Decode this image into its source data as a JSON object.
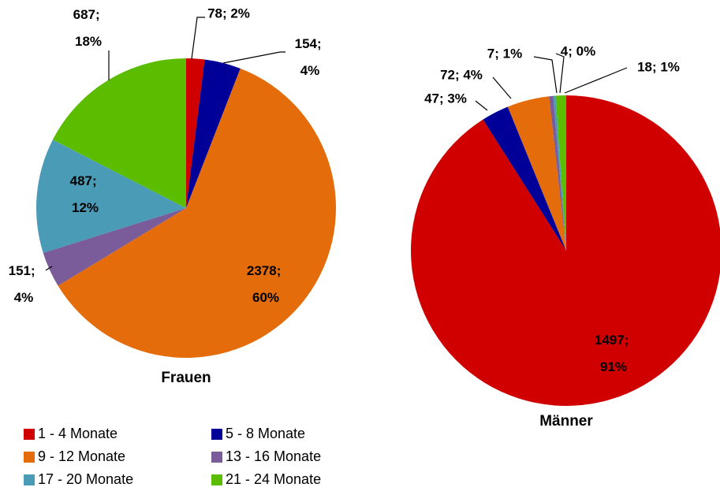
{
  "chart_data": [
    {
      "type": "pie",
      "title": "Frauen",
      "categories": [
        "1 - 4 Monate",
        "5 - 8 Monate",
        "9 - 12 Monate",
        "13 - 16 Monate",
        "17 - 20 Monate",
        "21 - 24 Monate"
      ],
      "colors": [
        "#d00000",
        "#000099",
        "#e46c0a",
        "#7a5c9a",
        "#4a9bb5",
        "#5cbd00"
      ],
      "values": [
        78,
        154,
        2378,
        151,
        487,
        687
      ],
      "value_labels": [
        "78; 2%",
        "154; 4%",
        "2378; 60%",
        "151; 4%",
        "487; 12%",
        "687; 18%"
      ],
      "legend": true
    },
    {
      "type": "pie",
      "title": "Männer",
      "colors": [
        "#d00000",
        "#000099",
        "#e46c0a",
        "#7a5c9a",
        "#4a9bb5",
        "#5cbd00"
      ],
      "values": [
        1497,
        47,
        72,
        7,
        4,
        18
      ],
      "value_labels": [
        "1497; 91%",
        "47; 3%",
        "72; 4%",
        "7; 1%",
        "4; 0%",
        "18; 1%"
      ]
    }
  ]
}
